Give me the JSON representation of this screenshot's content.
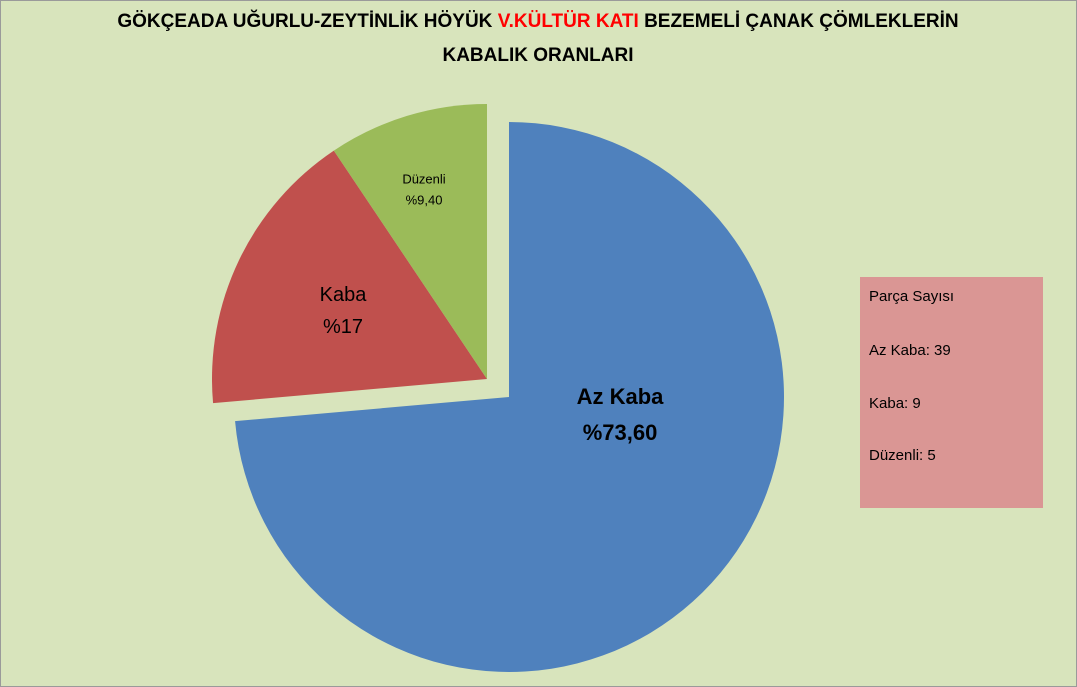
{
  "chart_data": {
    "type": "pie",
    "title": [
      "GÖKÇEADA UĞURLU-ZEYTİNLİK HÖYÜK",
      "V.KÜLTÜR KATI",
      "BEZEMELİ ÇANAK ÇÖMLEKLERİN",
      "KABALIK ORANLARI"
    ],
    "categories": [
      "Az Kaba",
      "Kaba",
      "Düzenli"
    ],
    "values": [
      73.6,
      17,
      9.4
    ],
    "value_labels": [
      "%73,60",
      "%17",
      "%9,40"
    ],
    "colors": [
      "#4f81bd",
      "#c0504d",
      "#9bbb59"
    ],
    "annotation": {
      "title": "Parça Sayısı",
      "lines": [
        "Az Kaba: 39",
        "Kaba: 9",
        "Düzenli: 5"
      ]
    }
  }
}
